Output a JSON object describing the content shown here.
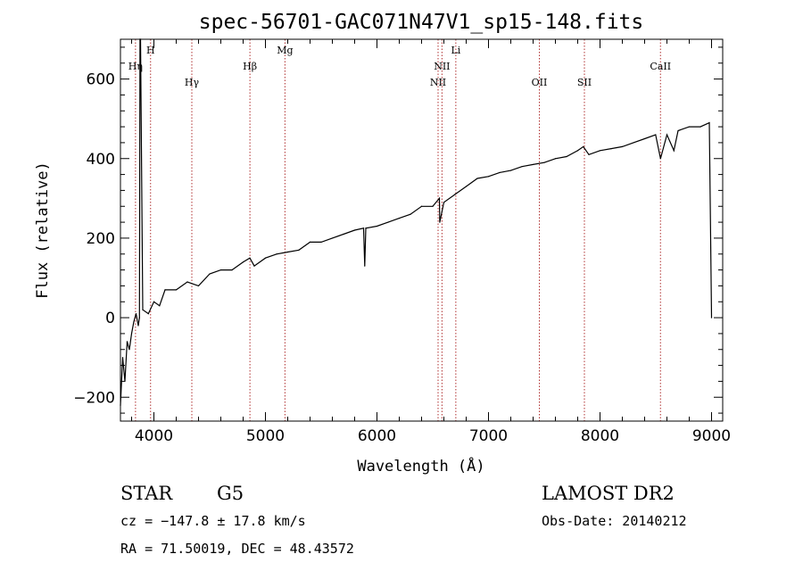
{
  "chart_data": {
    "type": "line",
    "title": "spec-56701-GAC071N47V1_sp15-148.fits",
    "xlabel": "Wavelength (Å)",
    "ylabel": "Flux (relative)",
    "xlim": [
      3700,
      9100
    ],
    "ylim": [
      -260,
      700
    ],
    "x_ticks": [
      4000,
      5000,
      6000,
      7000,
      8000,
      9000
    ],
    "y_ticks": [
      -200,
      0,
      200,
      400,
      600
    ],
    "grid": false,
    "series": [
      {
        "x": [
          3700,
          3720,
          3740,
          3760,
          3780,
          3800,
          3820,
          3840,
          3860,
          3870,
          3875,
          3880,
          3900,
          3950,
          4000,
          4050,
          4100,
          4200,
          4300,
          4400,
          4500,
          4600,
          4700,
          4800,
          4860,
          4900,
          5000,
          5100,
          5200,
          5300,
          5400,
          5500,
          5600,
          5700,
          5800,
          5880,
          5890,
          5900,
          6000,
          6100,
          6200,
          6300,
          6400,
          6500,
          6560,
          6563,
          6600,
          6700,
          6800,
          6900,
          7000,
          7100,
          7200,
          7300,
          7400,
          7500,
          7600,
          7700,
          7800,
          7850,
          7900,
          8000,
          8100,
          8200,
          8300,
          8400,
          8498,
          8542,
          8600,
          8662,
          8700,
          8800,
          8900,
          8980,
          9000
        ],
        "y": [
          -220,
          -100,
          -160,
          -60,
          -80,
          -40,
          -10,
          10,
          -20,
          0,
          720,
          720,
          20,
          10,
          40,
          30,
          70,
          70,
          90,
          80,
          110,
          120,
          120,
          140,
          150,
          130,
          150,
          160,
          165,
          170,
          190,
          190,
          200,
          210,
          220,
          225,
          130,
          225,
          230,
          240,
          250,
          260,
          280,
          280,
          300,
          240,
          290,
          310,
          330,
          350,
          355,
          365,
          370,
          380,
          385,
          390,
          400,
          405,
          420,
          430,
          410,
          420,
          425,
          430,
          440,
          450,
          460,
          400,
          460,
          420,
          470,
          480,
          480,
          490,
          0
        ]
      }
    ],
    "lines": [
      {
        "name": "Hη",
        "x": 3835,
        "row": 1
      },
      {
        "name": "H",
        "x": 3970,
        "row": 0
      },
      {
        "name": "Hγ",
        "x": 4340,
        "row": 2
      },
      {
        "name": "Hβ",
        "x": 4861,
        "row": 1
      },
      {
        "name": "Mg",
        "x": 5175,
        "row": 0
      },
      {
        "name": "NII",
        "x": 6548,
        "row": 2
      },
      {
        "name": "NII",
        "x": 6583,
        "row": 1
      },
      {
        "name": "Li",
        "x": 6707,
        "row": 0
      },
      {
        "name": "OII",
        "x": 7456,
        "row": 2
      },
      {
        "name": "SII",
        "x": 7860,
        "row": 2
      },
      {
        "name": "CaII",
        "x": 8542,
        "row": 1
      }
    ],
    "line_color": "#b03030"
  },
  "info": {
    "object_type": "STAR",
    "subclass": "G5",
    "survey": "LAMOST DR2",
    "cz": "cz = −147.8 ± 17.8 km/s",
    "obs_date": "Obs-Date: 20140212",
    "coords": "RA =  71.50019, DEC =  48.43572"
  }
}
